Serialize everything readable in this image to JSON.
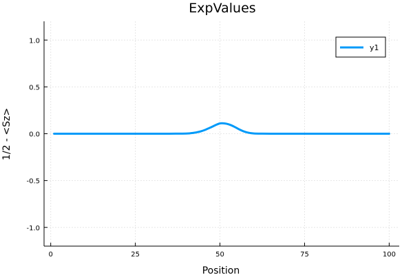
{
  "chart_data": {
    "type": "line",
    "title": "ExpValues",
    "xlabel": "Position",
    "ylabel": "1/2 - <Sz>",
    "xlim": [
      -1.97,
      102.97
    ],
    "ylim": [
      -1.2,
      1.2
    ],
    "x_ticks": [
      0,
      25,
      50,
      75,
      100
    ],
    "x_tick_labels": [
      "0",
      "25",
      "50",
      "75",
      "100"
    ],
    "y_ticks": [
      1.0,
      0.5,
      0.0,
      -0.5,
      -1.0
    ],
    "y_tick_labels": [
      "1.0",
      "0.5",
      "0.0",
      "-0.5",
      "-1.0"
    ],
    "grid": true,
    "legend": {
      "placement": "top-right",
      "entries": [
        "y1"
      ]
    },
    "series": [
      {
        "name": "y1",
        "color": "#009af9",
        "x": [
          1,
          10,
          20,
          30,
          35,
          38,
          40,
          41,
          42,
          43,
          44,
          45,
          46,
          47,
          48,
          49,
          50,
          51,
          52,
          53,
          54,
          55,
          56,
          57,
          58,
          59,
          60,
          62,
          65,
          70,
          80,
          90,
          100
        ],
        "y": [
          0,
          0,
          0,
          0,
          0,
          0.001,
          0.002,
          0.004,
          0.008,
          0.014,
          0.022,
          0.033,
          0.047,
          0.063,
          0.08,
          0.097,
          0.11,
          0.111,
          0.106,
          0.095,
          0.079,
          0.06,
          0.041,
          0.025,
          0.014,
          0.007,
          0.003,
          0.001,
          0,
          0,
          0,
          0,
          0
        ]
      }
    ]
  }
}
